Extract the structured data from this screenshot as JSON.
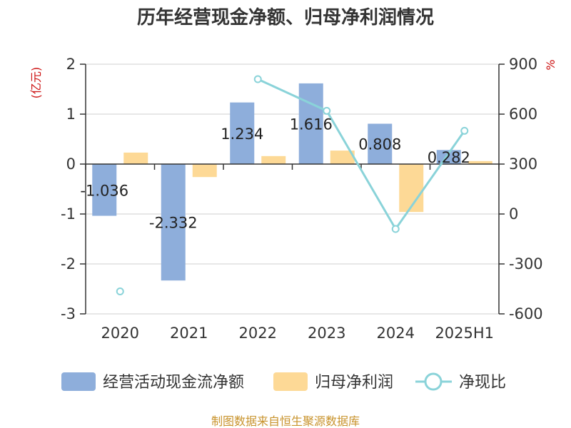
{
  "chart_data": {
    "type": "bar",
    "title": "历年经营现金净额、归母净利润情况",
    "categories": [
      "2020",
      "2021",
      "2022",
      "2023",
      "2024",
      "2025H1"
    ],
    "y_left": {
      "unit": "(亿元)",
      "ylim": [
        -3,
        2
      ],
      "ticks": [
        "2",
        "1",
        "0",
        "-1",
        "-2",
        "-3"
      ]
    },
    "y_right": {
      "unit": "%",
      "ylim": [
        -600,
        900
      ],
      "ticks": [
        "900",
        "600",
        "300",
        "0",
        "-300",
        "-600"
      ]
    },
    "series": [
      {
        "name": "经营活动现金流净额",
        "type": "bar",
        "axis": "left",
        "values": [
          -1.036,
          -2.332,
          1.234,
          1.616,
          0.808,
          0.282
        ],
        "labels": [
          "-1.036",
          "-2.332",
          "1.234",
          "1.616",
          "0.808",
          "0.282"
        ]
      },
      {
        "name": "归母净利润",
        "type": "bar",
        "axis": "left",
        "values": [
          0.23,
          -0.26,
          0.16,
          0.27,
          -0.96,
          0.06
        ]
      },
      {
        "name": "净现比",
        "type": "line",
        "axis": "right",
        "values": [
          -465,
          null,
          810,
          620,
          -90,
          500
        ]
      }
    ],
    "grid": true,
    "legend_position": "bottom"
  },
  "colors": {
    "cashflow_bar": "#8eaedb",
    "profit_bar": "#fdd996",
    "ratio_line": "#8ad3d9",
    "axis_unit": "#cc1111",
    "source_text": "#c8932c"
  },
  "source": "制图数据来自恒生聚源数据库"
}
